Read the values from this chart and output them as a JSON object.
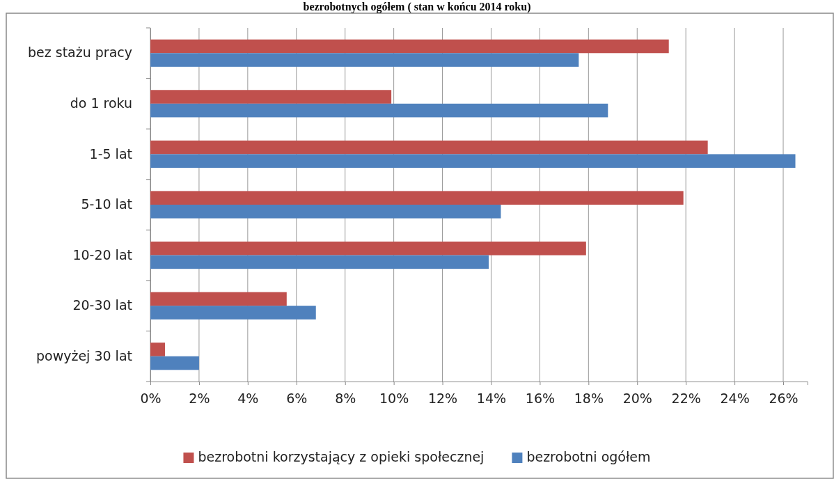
{
  "chart_data": {
    "type": "bar",
    "orientation": "horizontal",
    "title": "bezrobotnych ogółem ( stan w końcu 2014 roku)",
    "categories": [
      "bez stażu pracy",
      "do 1 roku",
      "1-5 lat",
      "5-10 lat",
      "10-20 lat",
      "20-30 lat",
      "powyżej 30 lat"
    ],
    "series": [
      {
        "name": "bezrobotni korzystający z opieki społecznej",
        "color": "#c0504d",
        "values": [
          21.3,
          9.9,
          22.9,
          21.9,
          17.9,
          5.6,
          0.6
        ]
      },
      {
        "name": "bezrobotni ogółem",
        "color": "#4f81bd",
        "values": [
          17.6,
          18.8,
          26.5,
          14.4,
          13.9,
          6.8,
          2.0
        ]
      }
    ],
    "xlim": [
      0,
      27
    ],
    "xticks": [
      {
        "value": 0,
        "label": "0%"
      },
      {
        "value": 2,
        "label": "2%"
      },
      {
        "value": 4,
        "label": "4%"
      },
      {
        "value": 6,
        "label": "6%"
      },
      {
        "value": 8,
        "label": "8%"
      },
      {
        "value": 10,
        "label": "10%"
      },
      {
        "value": 12,
        "label": "12%"
      },
      {
        "value": 14,
        "label": "14%"
      },
      {
        "value": 16,
        "label": "16%"
      },
      {
        "value": 18,
        "label": "18%"
      },
      {
        "value": 20,
        "label": "20%"
      },
      {
        "value": 22,
        "label": "22%"
      },
      {
        "value": 24,
        "label": "24%"
      },
      {
        "value": 26,
        "label": "26%"
      }
    ],
    "grid": "x",
    "legend": "bottom"
  }
}
